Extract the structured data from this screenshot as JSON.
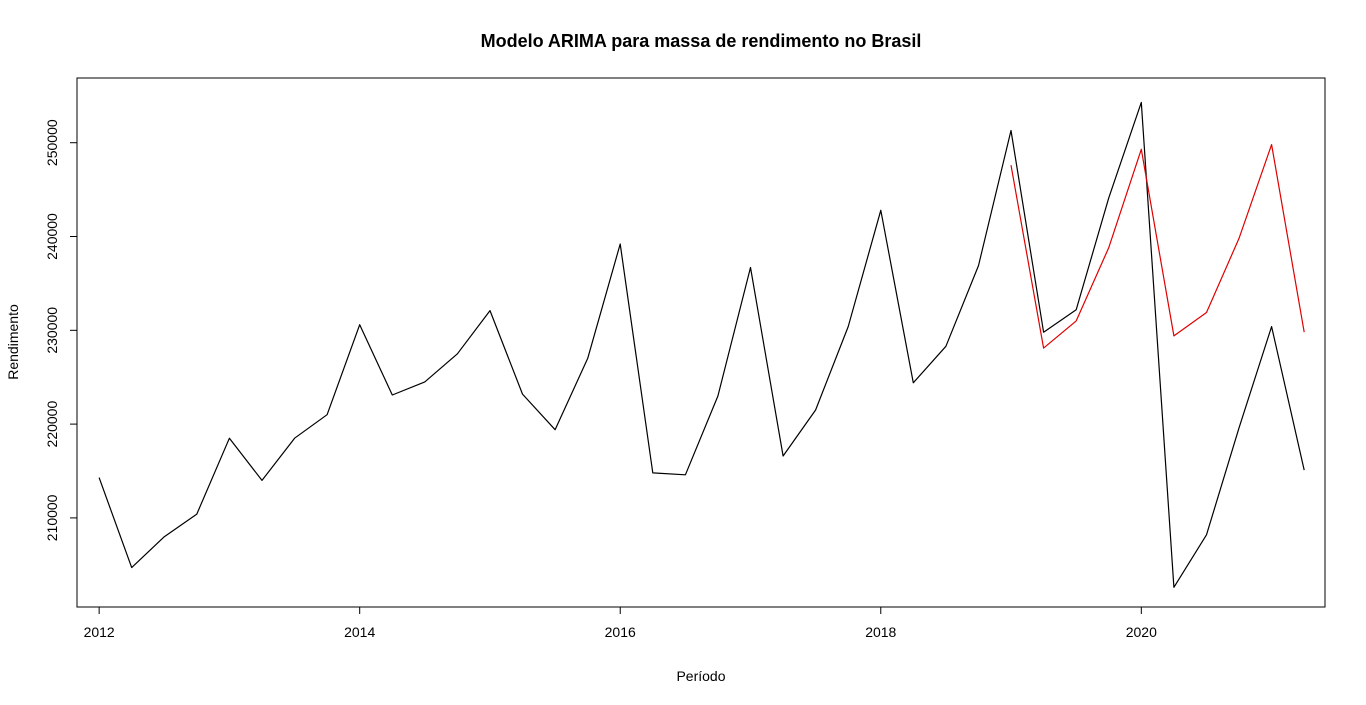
{
  "chart_data": {
    "type": "line",
    "title": "Modelo ARIMA para massa de rendimento no Brasil",
    "xlabel": "Período",
    "ylabel": "Rendimento",
    "xlim": [
      2011.83,
      2021.41
    ],
    "ylim": [
      200500,
      256900
    ],
    "x_ticks": [
      2012,
      2014,
      2016,
      2018,
      2020
    ],
    "x_tick_labels": [
      "2012",
      "2014",
      "2016",
      "2018",
      "2020"
    ],
    "y_ticks": [
      210000,
      220000,
      230000,
      240000,
      250000
    ],
    "y_tick_labels": [
      "210000",
      "220000",
      "230000",
      "240000",
      "250000"
    ],
    "grid": false,
    "legend": "none",
    "series": [
      {
        "color": "#000000",
        "x": [
          2012.0,
          2012.25,
          2012.5,
          2012.75,
          2013.0,
          2013.25,
          2013.5,
          2013.75,
          2014.0,
          2014.25,
          2014.5,
          2014.75,
          2015.0,
          2015.25,
          2015.5,
          2015.75,
          2016.0,
          2016.25,
          2016.5,
          2016.75,
          2017.0,
          2017.25,
          2017.5,
          2017.75,
          2018.0,
          2018.25,
          2018.5,
          2018.75,
          2019.0,
          2019.25,
          2019.5,
          2019.75,
          2020.0,
          2020.25,
          2020.5,
          2020.75,
          2021.0,
          2021.25
        ],
        "values": [
          214300,
          204700,
          208000,
          210400,
          218500,
          214000,
          218500,
          221000,
          230600,
          223100,
          224500,
          227500,
          232100,
          223200,
          219400,
          227000,
          239200,
          214800,
          214600,
          223000,
          236700,
          216600,
          221500,
          230400,
          242800,
          224400,
          228300,
          236900,
          251300,
          229800,
          232200,
          244100,
          254300,
          202600,
          208200,
          219600,
          230400,
          215100
        ]
      },
      {
        "color": "#e00000",
        "x": [
          2019.0,
          2019.25,
          2019.5,
          2019.75,
          2020.0,
          2020.25,
          2020.5,
          2020.75,
          2021.0,
          2021.25
        ],
        "values": [
          247600,
          228100,
          231000,
          238800,
          249300,
          229400,
          231900,
          239800,
          249800,
          229800
        ]
      }
    ]
  }
}
